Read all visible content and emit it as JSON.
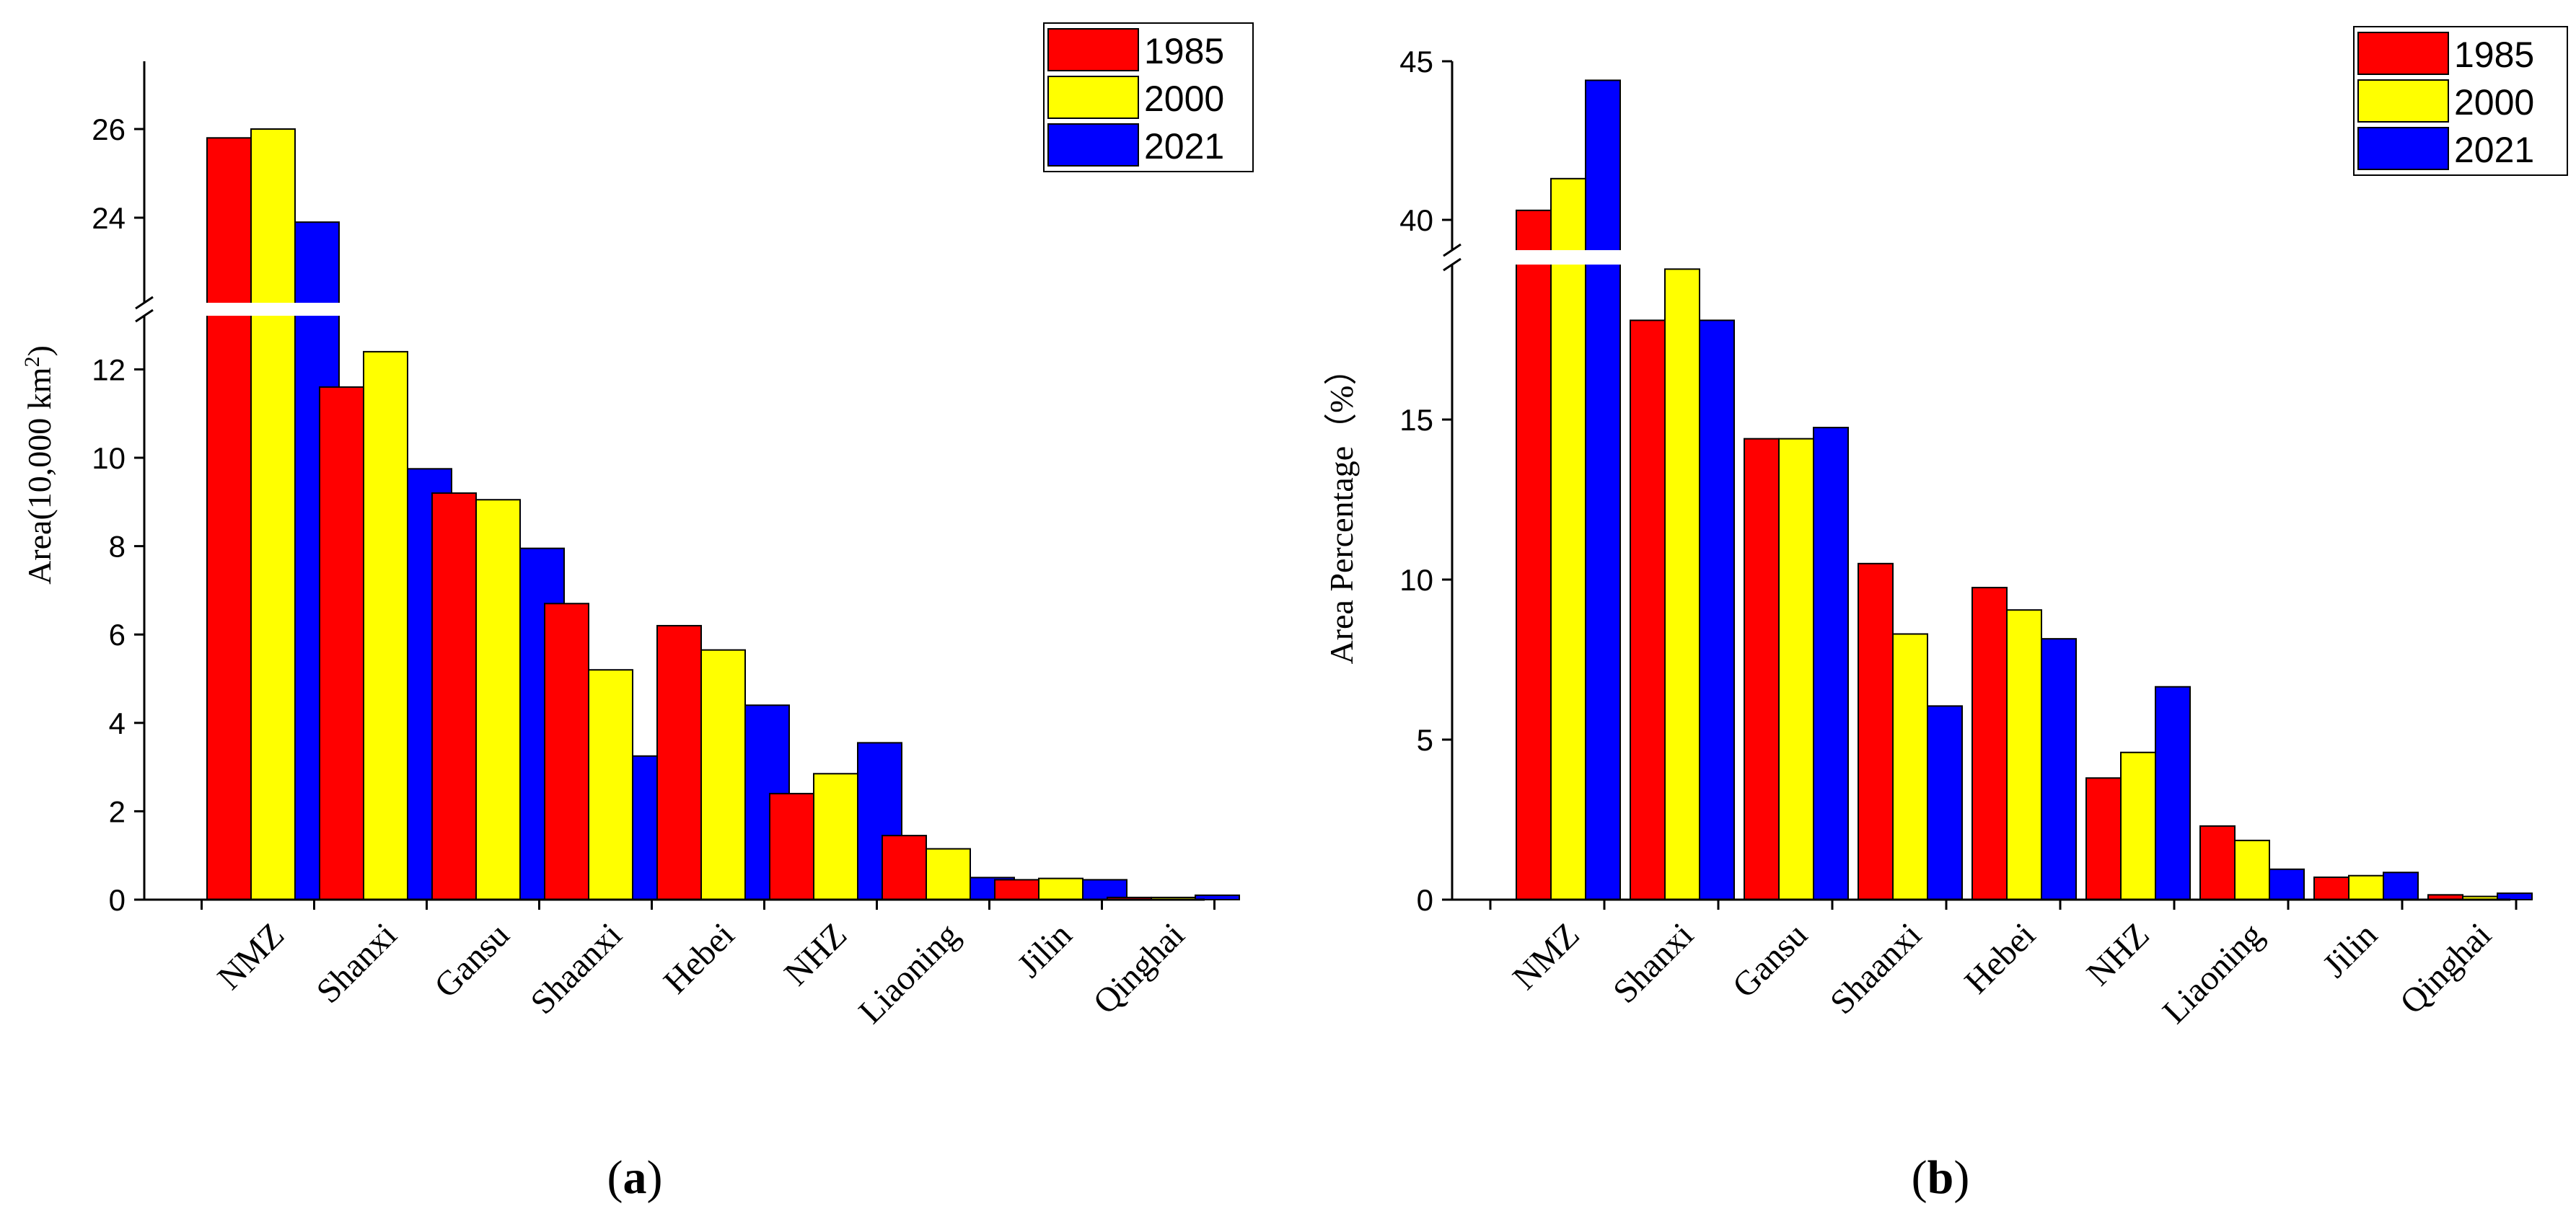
{
  "chart_data": [
    {
      "type": "bar",
      "caption_letter": "a",
      "categories": [
        "NMZ",
        "Shanxi",
        "Gansu",
        "Shaanxi",
        "Hebei",
        "NHZ",
        "Liaoning",
        "Jilin",
        "Qinghai"
      ],
      "series": [
        {
          "name": "1985",
          "color": "#ff0000",
          "values": [
            25.8,
            11.6,
            9.2,
            6.7,
            6.2,
            2.4,
            1.45,
            0.45,
            0.05
          ]
        },
        {
          "name": "2000",
          "color": "#ffff00",
          "values": [
            26.0,
            12.4,
            9.05,
            5.2,
            5.65,
            2.85,
            1.15,
            0.48,
            0.05
          ]
        },
        {
          "name": "2021",
          "color": "#0000ff",
          "values": [
            23.9,
            9.75,
            7.95,
            3.25,
            4.4,
            3.55,
            0.5,
            0.45,
            0.1
          ]
        }
      ],
      "ylabel": "Area(10,000 km",
      "ylabel_sup": "2",
      "ylabel_close": ")",
      "axis_break": {
        "lower_range": [
          0,
          13
        ],
        "upper_range": [
          23,
          27.5
        ]
      },
      "yticks_lower": [
        "0",
        "2",
        "4",
        "6",
        "8",
        "10",
        "12"
      ],
      "yticks_upper": [
        "24",
        "26"
      ],
      "legend_position": "top-right"
    },
    {
      "type": "bar",
      "caption_letter": "b",
      "categories": [
        "NMZ",
        "Shanxi",
        "Gansu",
        "Shaanxi",
        "Hebei",
        "NHZ",
        "Liaoning",
        "Jilin",
        "Qinghai"
      ],
      "series": [
        {
          "name": "1985",
          "color": "#ff0000",
          "values": [
            40.3,
            18.1,
            14.4,
            10.5,
            9.75,
            3.8,
            2.3,
            0.7,
            0.15
          ]
        },
        {
          "name": "2000",
          "color": "#ffff00",
          "values": [
            41.3,
            19.7,
            14.4,
            8.3,
            9.05,
            4.6,
            1.85,
            0.75,
            0.1
          ]
        },
        {
          "name": "2021",
          "color": "#0000ff",
          "values": [
            44.4,
            18.1,
            14.75,
            6.05,
            8.15,
            6.65,
            0.95,
            0.85,
            0.2
          ]
        }
      ],
      "ylabel": "Area Percentage（%）",
      "axis_break": {
        "lower_range": [
          0,
          20
        ],
        "upper_range": [
          39,
          45
        ]
      },
      "yticks_lower": [
        "0",
        "5",
        "10",
        "15"
      ],
      "yticks_upper": [
        "40",
        "45"
      ],
      "legend_position": "top-right"
    }
  ]
}
